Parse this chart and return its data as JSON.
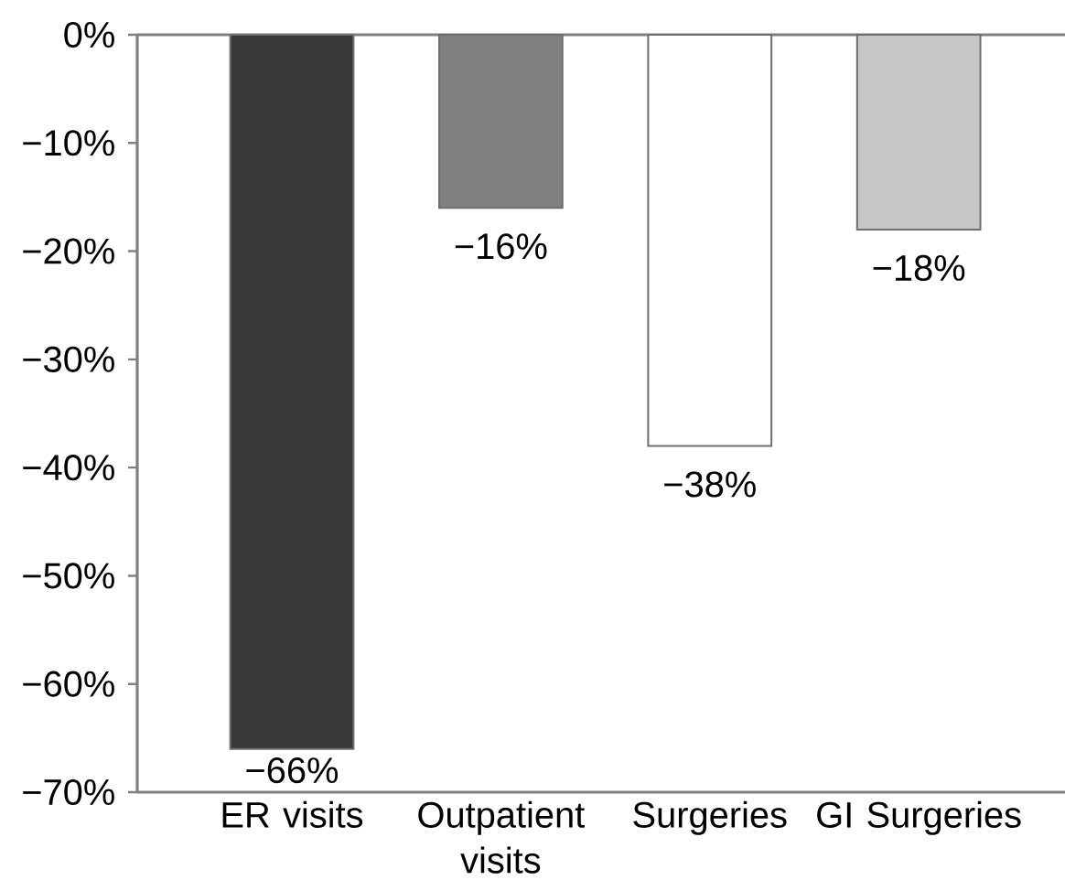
{
  "chart_data": {
    "type": "bar",
    "categories": [
      "ER visits",
      "Outpatient visits",
      "Surgeries",
      "GI Surgeries"
    ],
    "values": [
      -66,
      -16,
      -38,
      -18
    ],
    "colors": [
      "#383838",
      "#7f7f7f",
      "#ffffff",
      "#c6c6c6"
    ],
    "value_labels": [
      "−66%",
      "−16%",
      "−38%",
      "−18%"
    ],
    "ylim": [
      -70,
      0
    ],
    "yticks": [
      {
        "value": -70,
        "label": "−70%"
      },
      {
        "value": -60,
        "label": "−60%"
      },
      {
        "value": -50,
        "label": "−50%"
      },
      {
        "value": -40,
        "label": "−40%"
      },
      {
        "value": -30,
        "label": "−30%"
      },
      {
        "value": -20,
        "label": "−20%"
      },
      {
        "value": -10,
        "label": "−10%"
      },
      {
        "value": 0,
        "label": "0%"
      }
    ]
  }
}
